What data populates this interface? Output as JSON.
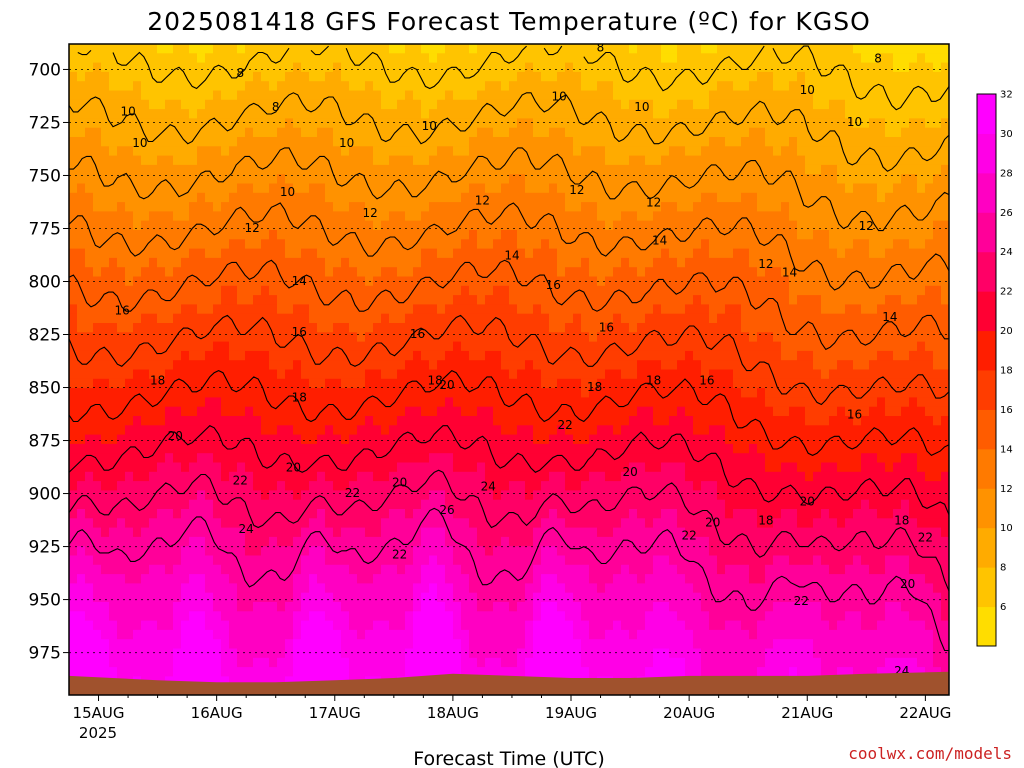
{
  "title": "2025081418 GFS Forecast Temperature (ºC) for KGSO",
  "credit": "coolwx.com/models",
  "colors": {
    "surface": "#a0522d",
    "grid": "#000000",
    "contour_line": "#000000",
    "palette": [
      "#ffdd00",
      "#ffc400",
      "#ffab00",
      "#ff9200",
      "#ff7a00",
      "#ff5c00",
      "#ff3d00",
      "#ff1e00",
      "#ff0033",
      "#ff0066",
      "#ff0099",
      "#ff00c2",
      "#ff00e6",
      "#ff00ff"
    ]
  },
  "chart_data": {
    "type": "heatmap",
    "title": "2025081418 GFS Forecast Temperature (ºC) for KGSO",
    "xlabel": "Forecast Time (UTC)",
    "ylabel": "",
    "x_ticks": [
      "15AUG",
      "16AUG",
      "17AUG",
      "18AUG",
      "19AUG",
      "20AUG",
      "21AUG",
      "22AUG"
    ],
    "x_sublabel": "2025",
    "xlim_days": [
      14.75,
      22.2
    ],
    "y_ticks": [
      700,
      725,
      750,
      775,
      800,
      825,
      850,
      875,
      900,
      925,
      950,
      975
    ],
    "ylim": [
      688,
      995
    ],
    "y_reversed": true,
    "grid": true,
    "colorbar": {
      "position": "right",
      "tick_labels": [
        6,
        8,
        10,
        12,
        14,
        16,
        18,
        20,
        22,
        24,
        26,
        28,
        30,
        32
      ],
      "levels": [
        5,
        7,
        9,
        11,
        13,
        15,
        17,
        19,
        21,
        23,
        25,
        27,
        29,
        31,
        33
      ]
    },
    "contour_levels": [
      8,
      10,
      12,
      14,
      16,
      18,
      20,
      22,
      24,
      26
    ],
    "surface_pressure": [
      [
        14.75,
        986
      ],
      [
        15.5,
        988
      ],
      [
        16.0,
        989
      ],
      [
        16.5,
        989
      ],
      [
        17.0,
        988
      ],
      [
        17.5,
        987
      ],
      [
        18.0,
        985
      ],
      [
        18.5,
        986
      ],
      [
        19.0,
        987
      ],
      [
        19.5,
        987
      ],
      [
        20.0,
        986
      ],
      [
        20.5,
        986
      ],
      [
        21.0,
        986
      ],
      [
        21.5,
        985
      ],
      [
        22.2,
        984
      ]
    ],
    "temperature_profile": {
      "description_units": "degC",
      "base_temp_at_700": 8.3,
      "lapse_per_25mb": 1.9,
      "diurnal_peaks_day": [
        14.85,
        15.85,
        16.85,
        17.85,
        18.85,
        19.85,
        20.85,
        21.85
      ],
      "diurnal_peak_surface_anomaly": [
        7,
        6,
        7,
        9,
        8,
        3,
        2.5,
        2.5
      ]
    },
    "contour_labels": [
      {
        "t": 15.25,
        "p": 720,
        "v": 10
      },
      {
        "t": 15.35,
        "p": 735,
        "v": 10
      },
      {
        "t": 16.5,
        "p": 718,
        "v": 8
      },
      {
        "t": 16.2,
        "p": 702,
        "v": 8
      },
      {
        "t": 17.1,
        "p": 735,
        "v": 10
      },
      {
        "t": 16.6,
        "p": 758,
        "v": 10
      },
      {
        "t": 17.8,
        "p": 727,
        "v": 10
      },
      {
        "t": 18.9,
        "p": 713,
        "v": 10
      },
      {
        "t": 19.25,
        "p": 690,
        "v": 8
      },
      {
        "t": 19.6,
        "p": 718,
        "v": 10
      },
      {
        "t": 21.0,
        "p": 710,
        "v": 10
      },
      {
        "t": 21.4,
        "p": 725,
        "v": 10
      },
      {
        "t": 21.6,
        "p": 695,
        "v": 8
      },
      {
        "t": 16.3,
        "p": 775,
        "v": 12
      },
      {
        "t": 17.3,
        "p": 768,
        "v": 12
      },
      {
        "t": 18.25,
        "p": 762,
        "v": 12
      },
      {
        "t": 19.05,
        "p": 757,
        "v": 12
      },
      {
        "t": 19.7,
        "p": 763,
        "v": 12
      },
      {
        "t": 20.65,
        "p": 792,
        "v": 12
      },
      {
        "t": 21.5,
        "p": 774,
        "v": 12
      },
      {
        "t": 16.7,
        "p": 800,
        "v": 14
      },
      {
        "t": 18.5,
        "p": 788,
        "v": 14
      },
      {
        "t": 19.75,
        "p": 781,
        "v": 14
      },
      {
        "t": 20.85,
        "p": 796,
        "v": 14
      },
      {
        "t": 21.7,
        "p": 817,
        "v": 14
      },
      {
        "t": 15.2,
        "p": 814,
        "v": 16
      },
      {
        "t": 16.7,
        "p": 824,
        "v": 16
      },
      {
        "t": 17.7,
        "p": 825,
        "v": 16
      },
      {
        "t": 18.85,
        "p": 802,
        "v": 16
      },
      {
        "t": 19.3,
        "p": 822,
        "v": 16
      },
      {
        "t": 20.15,
        "p": 847,
        "v": 16
      },
      {
        "t": 21.4,
        "p": 863,
        "v": 16
      },
      {
        "t": 15.5,
        "p": 847,
        "v": 18
      },
      {
        "t": 16.7,
        "p": 855,
        "v": 18
      },
      {
        "t": 17.85,
        "p": 847,
        "v": 18
      },
      {
        "t": 19.2,
        "p": 850,
        "v": 18
      },
      {
        "t": 19.7,
        "p": 847,
        "v": 18
      },
      {
        "t": 20.65,
        "p": 913,
        "v": 18
      },
      {
        "t": 21.8,
        "p": 913,
        "v": 18
      },
      {
        "t": 15.65,
        "p": 873,
        "v": 20
      },
      {
        "t": 16.65,
        "p": 888,
        "v": 20
      },
      {
        "t": 17.55,
        "p": 895,
        "v": 20
      },
      {
        "t": 17.95,
        "p": 849,
        "v": 20
      },
      {
        "t": 19.5,
        "p": 890,
        "v": 20
      },
      {
        "t": 20.2,
        "p": 914,
        "v": 20
      },
      {
        "t": 21.0,
        "p": 904,
        "v": 20
      },
      {
        "t": 21.85,
        "p": 943,
        "v": 20
      },
      {
        "t": 16.2,
        "p": 894,
        "v": 22
      },
      {
        "t": 17.15,
        "p": 900,
        "v": 22
      },
      {
        "t": 17.55,
        "p": 929,
        "v": 22
      },
      {
        "t": 18.95,
        "p": 868,
        "v": 22
      },
      {
        "t": 20.0,
        "p": 920,
        "v": 22
      },
      {
        "t": 20.95,
        "p": 951,
        "v": 22
      },
      {
        "t": 22.0,
        "p": 921,
        "v": 22
      },
      {
        "t": 16.25,
        "p": 917,
        "v": 24
      },
      {
        "t": 18.3,
        "p": 897,
        "v": 24
      },
      {
        "t": 21.8,
        "p": 984,
        "v": 24
      },
      {
        "t": 17.95,
        "p": 908,
        "v": 26
      }
    ]
  }
}
